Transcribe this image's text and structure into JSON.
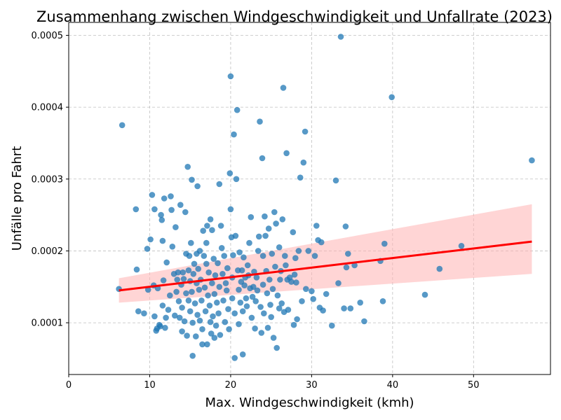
{
  "chart_data": {
    "type": "scatter",
    "title": "Zusammenhang zwischen Windgeschwindigkeit und Unfallrate (2023)",
    "xlabel": "Max. Windgeschwindigkeit (kmh)",
    "ylabel": "Unfälle pro Fahrt",
    "xlim": [
      0,
      59.5
    ],
    "ylim": [
      2.8e-05,
      0.000518
    ],
    "x_ticks": [
      0,
      10,
      20,
      30,
      40,
      50
    ],
    "x_tick_labels": [
      "0",
      "10",
      "20",
      "30",
      "40",
      "50"
    ],
    "y_ticks": [
      0.0001,
      0.0002,
      0.0003,
      0.0004,
      0.0005
    ],
    "y_tick_labels": [
      "0.0001",
      "0.0002",
      "0.0003",
      "0.0004",
      "0.0005"
    ],
    "grid": true,
    "colors": {
      "points": "#1f77b4",
      "regression": "#ff0000",
      "confidence_band": "#ffb3b3"
    },
    "regression": {
      "x": [
        6.2,
        57.2
      ],
      "y": [
        0.000145,
        0.000213
      ],
      "ci_lower": [
        0.000128,
        0.000168
      ],
      "ci_upper": [
        0.000162,
        0.000265
      ]
    },
    "points": [
      [
        6.2,
        0.000147
      ],
      [
        6.6,
        0.000375
      ],
      [
        8.3,
        0.000258
      ],
      [
        8.4,
        0.000174
      ],
      [
        8.6,
        0.000116
      ],
      [
        9.3,
        0.000113
      ],
      [
        9.7,
        0.000203
      ],
      [
        9.8,
        0.000146
      ],
      [
        10.1,
        0.000216
      ],
      [
        10.3,
        0.000278
      ],
      [
        10.5,
        0.000152
      ],
      [
        10.6,
        0.000258
      ],
      [
        10.6,
        0.000109
      ],
      [
        10.8,
        8.9e-05
      ],
      [
        10.9,
        9.2e-05
      ],
      [
        11.0,
        0.000148
      ],
      [
        11.2,
        9.7e-05
      ],
      [
        11.3,
        9.5e-05
      ],
      [
        11.4,
        0.00025
      ],
      [
        11.5,
        0.000243
      ],
      [
        11.6,
        0.000214
      ],
      [
        11.6,
        0.000124
      ],
      [
        11.7,
        0.000159
      ],
      [
        11.8,
        0.000273
      ],
      [
        11.9,
        9.3e-05
      ],
      [
        12.0,
        0.000107
      ],
      [
        12.1,
        0.000184
      ],
      [
        12.3,
        0.000118
      ],
      [
        12.5,
        0.000138
      ],
      [
        12.6,
        0.000276
      ],
      [
        12.7,
        0.000257
      ],
      [
        12.8,
        0.000206
      ],
      [
        13.0,
        0.000168
      ],
      [
        13.1,
        0.00011
      ],
      [
        13.2,
        0.000233
      ],
      [
        13.3,
        0.000143
      ],
      [
        13.4,
        0.00016
      ],
      [
        13.5,
        0.00017
      ],
      [
        13.6,
        0.00013
      ],
      [
        13.7,
        0.000107
      ],
      [
        13.8,
        0.000264
      ],
      [
        13.9,
        0.000153
      ],
      [
        14.0,
        0.000121
      ],
      [
        14.0,
        8.8e-05
      ],
      [
        14.1,
        0.00017
      ],
      [
        14.2,
        0.000161
      ],
      [
        14.3,
        0.000102
      ],
      [
        14.4,
        0.000254
      ],
      [
        14.5,
        0.000196
      ],
      [
        14.5,
        0.000141
      ],
      [
        14.6,
        8.2e-05
      ],
      [
        14.7,
        0.000317
      ],
      [
        14.8,
        0.000173
      ],
      [
        14.8,
        0.000131
      ],
      [
        14.9,
        0.000193
      ],
      [
        15.0,
        0.000158
      ],
      [
        15.0,
        0.000116
      ],
      [
        15.1,
        0.000211
      ],
      [
        15.2,
        0.000299
      ],
      [
        15.2,
        0.000143
      ],
      [
        15.3,
        0.0001
      ],
      [
        15.3,
        5.4e-05
      ],
      [
        15.4,
        0.000168
      ],
      [
        15.5,
        0.000182
      ],
      [
        15.6,
        0.000127
      ],
      [
        15.7,
        8.1e-05
      ],
      [
        15.8,
        0.000196
      ],
      [
        15.8,
        0.000155
      ],
      [
        15.9,
        0.00029
      ],
      [
        15.9,
        0.000111
      ],
      [
        16.0,
        0.000175
      ],
      [
        16.1,
        0.000146
      ],
      [
        16.2,
        0.0002
      ],
      [
        16.2,
        0.000103
      ],
      [
        16.3,
        0.00016
      ],
      [
        16.4,
        0.000131
      ],
      [
        16.5,
        9.1e-05
      ],
      [
        16.5,
        7e-05
      ],
      [
        16.6,
        0.000228
      ],
      [
        16.7,
        0.000193
      ],
      [
        16.8,
        0.000149
      ],
      [
        16.9,
        0.000116
      ],
      [
        17.0,
        0.000182
      ],
      [
        17.0,
        0.000211
      ],
      [
        17.1,
        0.000235
      ],
      [
        17.1,
        7e-05
      ],
      [
        17.2,
        0.000138
      ],
      [
        17.3,
        0.00017
      ],
      [
        17.4,
        0.000124
      ],
      [
        17.5,
        0.000244
      ],
      [
        17.5,
        0.000101
      ],
      [
        17.6,
        8.5e-05
      ],
      [
        17.7,
        0.000229
      ],
      [
        17.7,
        0.000155
      ],
      [
        17.8,
        0.000109
      ],
      [
        17.9,
        0.000189
      ],
      [
        18.0,
        0.00014
      ],
      [
        18.0,
        7.9e-05
      ],
      [
        18.1,
        0.000166
      ],
      [
        18.2,
        9.6e-05
      ],
      [
        18.3,
        0.000128
      ],
      [
        18.4,
        0.000183
      ],
      [
        18.5,
        0.000113
      ],
      [
        18.6,
        0.000293
      ],
      [
        18.6,
        0.00015
      ],
      [
        18.7,
        8.3e-05
      ],
      [
        18.8,
        0.000235
      ],
      [
        18.9,
        0.000204
      ],
      [
        19.0,
        0.000168
      ],
      [
        19.1,
        0.000131
      ],
      [
        19.2,
        0.000193
      ],
      [
        19.3,
        0.000101
      ],
      [
        19.4,
        0.000155
      ],
      [
        19.5,
        0.000145
      ],
      [
        19.6,
        0.000176
      ],
      [
        19.7,
        0.000119
      ],
      [
        19.8,
        9.1e-05
      ],
      [
        19.9,
        0.000308
      ],
      [
        20.0,
        0.000258
      ],
      [
        20.0,
        0.000443
      ],
      [
        20.1,
        0.000219
      ],
      [
        20.2,
        0.000163
      ],
      [
        20.2,
        0.000134
      ],
      [
        20.3,
        0.000194
      ],
      [
        20.4,
        0.000362
      ],
      [
        20.5,
        0.000113
      ],
      [
        20.5,
        5.1e-05
      ],
      [
        20.6,
        0.000221
      ],
      [
        20.7,
        0.0003
      ],
      [
        20.8,
        0.000396
      ],
      [
        20.9,
        0.000173
      ],
      [
        21.0,
        0.000146
      ],
      [
        21.0,
        9.8e-05
      ],
      [
        21.1,
        0.000198
      ],
      [
        21.2,
        0.000128
      ],
      [
        21.3,
        0.000157
      ],
      [
        21.4,
        0.000173
      ],
      [
        21.5,
        0.000116
      ],
      [
        21.6,
        0.000191
      ],
      [
        21.5,
        5.6e-05
      ],
      [
        21.7,
        0.000152
      ],
      [
        21.8,
        0.000163
      ],
      [
        21.9,
        0.000134
      ],
      [
        22.0,
        0.000123
      ],
      [
        22.1,
        0.00018
      ],
      [
        22.2,
        0.000166
      ],
      [
        22.3,
        0.000211
      ],
      [
        22.4,
        0.000148
      ],
      [
        22.5,
        0.000247
      ],
      [
        22.6,
        0.000107
      ],
      [
        22.7,
        0.000136
      ],
      [
        22.8,
        0.00015
      ],
      [
        22.9,
        0.000171
      ],
      [
        23.0,
        9.2e-05
      ],
      [
        23.1,
        0.00013
      ],
      [
        23.2,
        0.000163
      ],
      [
        23.3,
        0.000145
      ],
      [
        23.4,
        0.0002
      ],
      [
        23.5,
        0.00022
      ],
      [
        23.6,
        0.00038
      ],
      [
        23.7,
        0.000122
      ],
      [
        23.8,
        8.6e-05
      ],
      [
        23.9,
        0.000329
      ],
      [
        24.0,
        0.000193
      ],
      [
        24.0,
        0.000153
      ],
      [
        24.1,
        0.000113
      ],
      [
        24.2,
        0.000248
      ],
      [
        24.3,
        0.000221
      ],
      [
        24.4,
        0.000172
      ],
      [
        24.5,
        0.000141
      ],
      [
        24.6,
        9.3e-05
      ],
      [
        24.7,
        0.000231
      ],
      [
        24.8,
        0.00016
      ],
      [
        24.9,
        0.000125
      ],
      [
        25.0,
        0.000108
      ],
      [
        25.1,
        0.000196
      ],
      [
        25.2,
        0.000147
      ],
      [
        25.3,
        7.9e-05
      ],
      [
        25.4,
        0.000254
      ],
      [
        25.5,
        0.000178
      ],
      [
        25.6,
        0.000238
      ],
      [
        25.7,
        6.5e-05
      ],
      [
        25.8,
        0.000138
      ],
      [
        26.0,
        0.000205
      ],
      [
        26.0,
        0.00012
      ],
      [
        26.1,
        0.00016
      ],
      [
        26.2,
        0.000172
      ],
      [
        26.3,
        0.000127
      ],
      [
        26.4,
        0.000244
      ],
      [
        26.5,
        0.000427
      ],
      [
        26.6,
        0.000115
      ],
      [
        26.7,
        0.000193
      ],
      [
        26.8,
        0.00018
      ],
      [
        26.9,
        0.000336
      ],
      [
        27.0,
        0.00016
      ],
      [
        27.1,
        0.000118
      ],
      [
        27.3,
        0.000163
      ],
      [
        27.5,
        0.000157
      ],
      [
        27.7,
        0.000226
      ],
      [
        27.8,
        9.7e-05
      ],
      [
        27.9,
        0.000167
      ],
      [
        28.0,
        0.00019
      ],
      [
        28.1,
        0.000156
      ],
      [
        28.2,
        0.000105
      ],
      [
        28.4,
        0.0002
      ],
      [
        28.6,
        0.000302
      ],
      [
        28.8,
        0.00013
      ],
      [
        29.0,
        0.000323
      ],
      [
        29.2,
        0.000366
      ],
      [
        29.3,
        0.000147
      ],
      [
        29.6,
        0.0002
      ],
      [
        30.0,
        0.000144
      ],
      [
        30.2,
        0.000133
      ],
      [
        30.4,
        0.000193
      ],
      [
        30.6,
        0.000235
      ],
      [
        30.8,
        0.000215
      ],
      [
        31.0,
        0.000121
      ],
      [
        31.2,
        0.000212
      ],
      [
        31.4,
        0.000117
      ],
      [
        31.8,
        0.00014
      ],
      [
        32.5,
        9.6e-05
      ],
      [
        33.0,
        0.000298
      ],
      [
        33.3,
        0.000155
      ],
      [
        33.6,
        0.000498
      ],
      [
        34.0,
        0.00012
      ],
      [
        34.2,
        0.000234
      ],
      [
        34.3,
        0.000177
      ],
      [
        34.5,
        0.000196
      ],
      [
        34.8,
        0.00012
      ],
      [
        35.3,
        0.00018
      ],
      [
        36.0,
        0.000128
      ],
      [
        36.5,
        0.000102
      ],
      [
        38.5,
        0.000186
      ],
      [
        38.8,
        0.00013
      ],
      [
        39.0,
        0.00021
      ],
      [
        39.9,
        0.000414
      ],
      [
        44.0,
        0.000139
      ],
      [
        45.8,
        0.000175
      ],
      [
        48.5,
        0.000207
      ],
      [
        57.2,
        0.000326
      ]
    ]
  }
}
